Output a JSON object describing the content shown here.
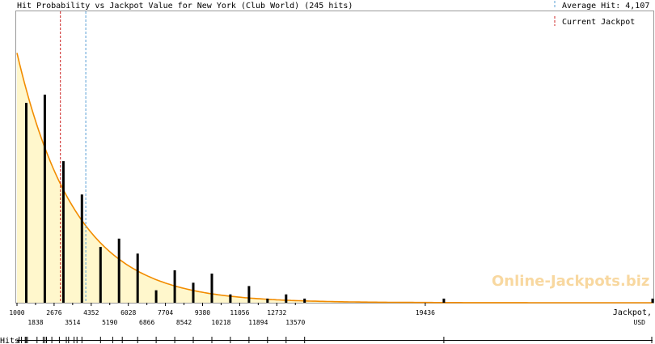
{
  "chart_data": {
    "type": "bar",
    "title": "Hit Probability vs Jackpot Value for New York (Club World) (245 hits)",
    "xlabel": [
      "Jackpot,",
      "USD"
    ],
    "ylabel": "",
    "xlim": [
      1000,
      29700
    ],
    "ylim": [
      0,
      70
    ],
    "x_ticks_upper": [
      1000,
      2676,
      4352,
      6028,
      7704,
      9380,
      11056,
      12732,
      19436
    ],
    "x_ticks_lower": [
      1838,
      3514,
      5190,
      6866,
      8542,
      10218,
      11894,
      13570
    ],
    "x_tick_labels_upper": [
      "1000",
      "2676",
      "4352",
      "6028",
      "7704",
      "9380",
      "11056",
      "12732",
      "19436"
    ],
    "x_tick_labels_lower": [
      "1838",
      "3514",
      "5190",
      "6866",
      "8542",
      "10218",
      "11894",
      "13570"
    ],
    "series": [
      {
        "x": [
          1419,
          2257,
          3095,
          3933,
          4771,
          5609,
          6447,
          7285,
          8123,
          8961,
          9799,
          10637,
          11475,
          12313,
          13151,
          13989,
          20275,
          29700
        ],
        "values": [
          48,
          50,
          34,
          26,
          13.4,
          15.4,
          11.8,
          3,
          7.8,
          4.8,
          7,
          2,
          4,
          1,
          2,
          1,
          1,
          1
        ]
      }
    ],
    "fit_curve": {
      "type": "exponential",
      "start": 60,
      "decay_per_usd": 0.000379
    },
    "reference_lines": [
      {
        "label": "Average Hit: 4,107",
        "x": 4107,
        "color": "#5a9fd4",
        "style": "dashed"
      },
      {
        "label": "Current Jackpot",
        "x": 2960,
        "color": "#cc2222",
        "style": "dashed"
      }
    ],
    "rug_label": "Hits",
    "watermark": "Online-Jackpots.biz",
    "colors": {
      "bar": "#000000",
      "fill": "#fff7cc",
      "curve": "#f28c00",
      "watermark": "#f8d8a0"
    },
    "grid": false,
    "legend_position": "top-right"
  }
}
